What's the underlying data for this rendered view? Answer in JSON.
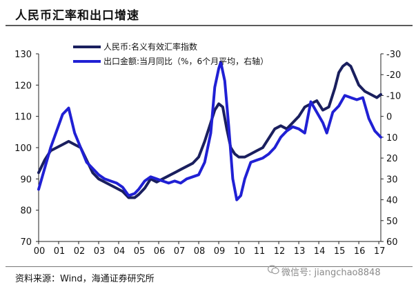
{
  "title": "人民币汇率和出口增速",
  "source": "资料来源：Wind，海通证券研究所",
  "watermark": "微信号: jiangchao8848",
  "chart_data": {
    "type": "line",
    "x_ticks": [
      "00",
      "01",
      "02",
      "03",
      "04",
      "05",
      "06",
      "07",
      "08",
      "09",
      "10",
      "11",
      "12",
      "13",
      "14",
      "15",
      "16",
      "17"
    ],
    "x_range": [
      2000,
      2017.1
    ],
    "y_left": {
      "ticks": [
        70,
        80,
        90,
        100,
        110,
        120,
        130
      ],
      "lim": [
        70,
        130
      ]
    },
    "y_right": {
      "ticks": [
        -30,
        -20,
        -10,
        0,
        10,
        20,
        30,
        40,
        50,
        60
      ],
      "lim": [
        -30,
        60
      ],
      "inverted": true
    },
    "series": [
      {
        "name": "人民币:名义有效汇率指数",
        "axis": "left",
        "color": "#1a1f5e",
        "x": [
          2000.0,
          2000.3,
          2000.6,
          2000.9,
          2001.2,
          2001.5,
          2001.8,
          2002.1,
          2002.4,
          2002.7,
          2003.0,
          2003.3,
          2003.6,
          2003.9,
          2004.2,
          2004.5,
          2004.8,
          2005.0,
          2005.3,
          2005.6,
          2005.9,
          2006.2,
          2006.5,
          2006.8,
          2007.1,
          2007.4,
          2007.7,
          2008.0,
          2008.3,
          2008.6,
          2008.8,
          2009.0,
          2009.2,
          2009.4,
          2009.6,
          2009.8,
          2010.0,
          2010.3,
          2010.6,
          2010.9,
          2011.2,
          2011.5,
          2011.8,
          2012.1,
          2012.4,
          2012.7,
          2013.0,
          2013.3,
          2013.6,
          2013.9,
          2014.2,
          2014.5,
          2014.8,
          2015.0,
          2015.2,
          2015.4,
          2015.6,
          2015.8,
          2016.0,
          2016.3,
          2016.6,
          2016.9,
          2017.1
        ],
        "values": [
          92,
          96,
          99,
          100,
          101,
          102,
          101,
          100,
          96,
          92,
          90,
          89,
          88,
          87,
          86,
          84,
          84,
          85,
          87,
          90,
          89,
          90,
          91,
          92,
          93,
          94,
          95,
          97,
          102,
          108,
          112,
          114,
          113,
          106,
          100,
          98,
          97,
          97,
          98,
          99,
          100,
          103,
          106,
          107,
          106,
          108,
          110,
          113,
          114,
          115,
          112,
          113,
          119,
          124,
          126,
          127,
          126,
          123,
          120,
          118,
          117,
          116,
          117
        ]
      },
      {
        "name": "出口金额:当月同比（%，6个月平均，右轴）",
        "axis": "right",
        "color": "#2020d4",
        "x": [
          2000.0,
          2000.3,
          2000.6,
          2000.9,
          2001.2,
          2001.5,
          2001.8,
          2002.1,
          2002.4,
          2002.7,
          2003.0,
          2003.3,
          2003.6,
          2003.9,
          2004.2,
          2004.5,
          2004.8,
          2005.0,
          2005.3,
          2005.6,
          2005.9,
          2006.2,
          2006.5,
          2006.8,
          2007.1,
          2007.4,
          2007.7,
          2008.0,
          2008.3,
          2008.6,
          2008.8,
          2009.0,
          2009.1,
          2009.3,
          2009.5,
          2009.7,
          2009.9,
          2010.1,
          2010.3,
          2010.6,
          2010.9,
          2011.2,
          2011.5,
          2011.8,
          2012.1,
          2012.4,
          2012.7,
          2013.0,
          2013.3,
          2013.6,
          2013.9,
          2014.2,
          2014.4,
          2014.7,
          2015.0,
          2015.3,
          2015.6,
          2015.9,
          2016.2,
          2016.5,
          2016.8,
          2017.1
        ],
        "values": [
          35,
          25,
          15,
          7,
          -1,
          -4,
          8,
          15,
          22,
          25,
          28,
          30,
          31,
          32,
          34,
          38,
          37,
          35,
          31,
          29,
          30,
          31,
          32,
          31,
          32,
          30,
          29,
          28,
          22,
          8,
          -14,
          -23,
          -26,
          -17,
          5,
          30,
          40,
          38,
          30,
          22,
          21,
          20,
          18,
          15,
          10,
          7,
          5,
          6,
          8,
          -7,
          -2,
          3,
          8,
          -2,
          -5,
          -10,
          -9,
          -8,
          -9,
          1,
          7,
          10
        ]
      }
    ]
  }
}
